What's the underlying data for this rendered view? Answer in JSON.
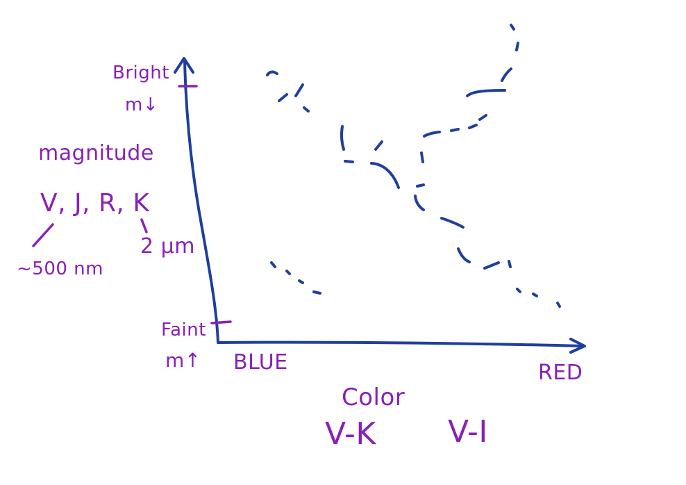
{
  "diagram": {
    "y_axis": {
      "top_label": "Bright",
      "top_symbol": "m",
      "top_arrow": "↓",
      "bottom_label": "Faint",
      "bottom_symbol": "m",
      "bottom_arrow": "↑",
      "title": "magnitude",
      "bands": "V, J, R, K",
      "band_v_note": "~500 nm",
      "band_k_note": "2 μm"
    },
    "x_axis": {
      "left_label": "BLUE",
      "right_label": "RED",
      "title": "Color",
      "index_1": "V-K",
      "index_2": "V-I"
    },
    "colors": {
      "axis_ink": "#1f3f9e",
      "label_ink": "#8a1fb8",
      "background": "#ffffff"
    }
  }
}
